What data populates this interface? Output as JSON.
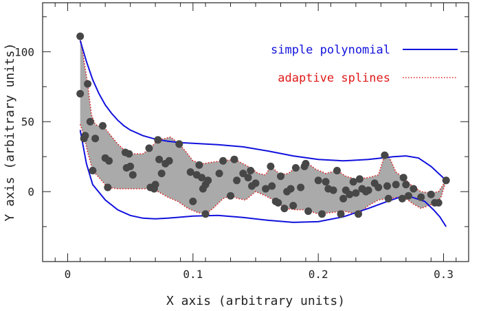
{
  "chart_data": {
    "type": "scatter",
    "xlabel": "X axis (arbitrary units)",
    "ylabel": "Y axis (arbitrary units)",
    "xlim": [
      -0.02,
      0.32
    ],
    "ylim": [
      -50,
      135
    ],
    "xticks": [
      0,
      0.1,
      0.2,
      0.3
    ],
    "xtick_labels": [
      "0",
      "0.1",
      "0.2",
      "0.3"
    ],
    "yticks": [
      0,
      50,
      100
    ],
    "ytick_labels": [
      "0",
      "50",
      "100"
    ],
    "grid": false,
    "legend": {
      "position": "top-right",
      "entries": [
        {
          "label": "simple polynomial",
          "color": "#1010dd",
          "style": "solid"
        },
        {
          "label": "adaptive splines",
          "color": "#e01818",
          "style": "dotted"
        }
      ]
    },
    "colors": {
      "points": "#474747",
      "band_fill": "#aaaaaa",
      "polynomial": "#1010dd",
      "splines": "#e01818"
    },
    "points": [
      [
        0.01,
        111
      ],
      [
        0.01,
        70
      ],
      [
        0.013,
        38
      ],
      [
        0.014,
        40
      ],
      [
        0.016,
        77
      ],
      [
        0.018,
        50
      ],
      [
        0.02,
        15
      ],
      [
        0.022,
        38
      ],
      [
        0.028,
        47
      ],
      [
        0.03,
        24
      ],
      [
        0.032,
        3
      ],
      [
        0.033,
        22
      ],
      [
        0.046,
        28
      ],
      [
        0.047,
        17
      ],
      [
        0.049,
        27
      ],
      [
        0.05,
        18
      ],
      [
        0.052,
        12
      ],
      [
        0.065,
        31
      ],
      [
        0.066,
        3
      ],
      [
        0.069,
        2
      ],
      [
        0.07,
        5
      ],
      [
        0.072,
        37
      ],
      [
        0.073,
        23
      ],
      [
        0.075,
        13
      ],
      [
        0.078,
        20
      ],
      [
        0.081,
        22
      ],
      [
        0.089,
        34
      ],
      [
        0.098,
        14
      ],
      [
        0.1,
        -7
      ],
      [
        0.103,
        12
      ],
      [
        0.105,
        19
      ],
      [
        0.107,
        10
      ],
      [
        0.108,
        2
      ],
      [
        0.11,
        -16
      ],
      [
        0.11,
        5
      ],
      [
        0.112,
        8
      ],
      [
        0.121,
        13
      ],
      [
        0.124,
        22
      ],
      [
        0.13,
        -3
      ],
      [
        0.133,
        23
      ],
      [
        0.135,
        8
      ],
      [
        0.14,
        13
      ],
      [
        0.144,
        10
      ],
      [
        0.146,
        15
      ],
      [
        0.147,
        4
      ],
      [
        0.15,
        6
      ],
      [
        0.158,
        2
      ],
      [
        0.162,
        18
      ],
      [
        0.163,
        4
      ],
      [
        0.166,
        -7
      ],
      [
        0.168,
        -8
      ],
      [
        0.17,
        11
      ],
      [
        0.173,
        -12
      ],
      [
        0.175,
        0
      ],
      [
        0.178,
        2
      ],
      [
        0.18,
        -10
      ],
      [
        0.182,
        17
      ],
      [
        0.186,
        3
      ],
      [
        0.189,
        18
      ],
      [
        0.19,
        20
      ],
      [
        0.192,
        -14
      ],
      [
        0.2,
        8
      ],
      [
        0.203,
        -16
      ],
      [
        0.206,
        7
      ],
      [
        0.208,
        2
      ],
      [
        0.212,
        1
      ],
      [
        0.215,
        15
      ],
      [
        0.218,
        -16
      ],
      [
        0.22,
        -5
      ],
      [
        0.222,
        1
      ],
      [
        0.225,
        -2
      ],
      [
        0.228,
        7
      ],
      [
        0.23,
        -1
      ],
      [
        0.232,
        -16
      ],
      [
        0.233,
        9
      ],
      [
        0.235,
        2
      ],
      [
        0.238,
        0
      ],
      [
        0.24,
        1
      ],
      [
        0.245,
        6
      ],
      [
        0.248,
        3
      ],
      [
        0.253,
        26
      ],
      [
        0.255,
        4
      ],
      [
        0.256,
        -5
      ],
      [
        0.262,
        5
      ],
      [
        0.267,
        -5
      ],
      [
        0.268,
        10
      ],
      [
        0.27,
        5
      ],
      [
        0.272,
        -3
      ],
      [
        0.276,
        2
      ],
      [
        0.282,
        -4
      ],
      [
        0.29,
        -2
      ],
      [
        0.293,
        -8
      ],
      [
        0.296,
        -8
      ],
      [
        0.302,
        8
      ]
    ],
    "polynomial_upper": [
      [
        0.01,
        108
      ],
      [
        0.015,
        93
      ],
      [
        0.02,
        80
      ],
      [
        0.025,
        70
      ],
      [
        0.03,
        62
      ],
      [
        0.035,
        56
      ],
      [
        0.04,
        51
      ],
      [
        0.045,
        47
      ],
      [
        0.05,
        44
      ],
      [
        0.06,
        40
      ],
      [
        0.07,
        37.5
      ],
      [
        0.08,
        36
      ],
      [
        0.09,
        35
      ],
      [
        0.1,
        34.5
      ],
      [
        0.11,
        34
      ],
      [
        0.12,
        33.5
      ],
      [
        0.14,
        32
      ],
      [
        0.16,
        29
      ],
      [
        0.18,
        25.5
      ],
      [
        0.2,
        23
      ],
      [
        0.22,
        22
      ],
      [
        0.24,
        23
      ],
      [
        0.26,
        25
      ],
      [
        0.27,
        25.5
      ],
      [
        0.28,
        24
      ],
      [
        0.29,
        18
      ],
      [
        0.302,
        8
      ]
    ],
    "polynomial_lower": [
      [
        0.01,
        44
      ],
      [
        0.015,
        20
      ],
      [
        0.02,
        5
      ],
      [
        0.03,
        -6
      ],
      [
        0.04,
        -13
      ],
      [
        0.05,
        -17
      ],
      [
        0.06,
        -19
      ],
      [
        0.07,
        -19.5
      ],
      [
        0.08,
        -19
      ],
      [
        0.1,
        -17.5
      ],
      [
        0.12,
        -17
      ],
      [
        0.14,
        -18.5
      ],
      [
        0.16,
        -20.5
      ],
      [
        0.18,
        -22
      ],
      [
        0.2,
        -21.5
      ],
      [
        0.22,
        -18
      ],
      [
        0.24,
        -12
      ],
      [
        0.255,
        -7
      ],
      [
        0.265,
        -4
      ],
      [
        0.275,
        -4
      ],
      [
        0.285,
        -7
      ],
      [
        0.292,
        -13
      ],
      [
        0.297,
        -18
      ],
      [
        0.302,
        -25
      ]
    ],
    "spline_upper": [
      [
        0.01,
        111
      ],
      [
        0.014,
        88
      ],
      [
        0.016,
        77
      ],
      [
        0.019,
        55
      ],
      [
        0.022,
        48
      ],
      [
        0.03,
        45
      ],
      [
        0.04,
        34
      ],
      [
        0.046,
        29
      ],
      [
        0.052,
        27
      ],
      [
        0.06,
        27
      ],
      [
        0.066,
        31
      ],
      [
        0.072,
        37
      ],
      [
        0.078,
        38
      ],
      [
        0.082,
        39
      ],
      [
        0.088,
        35
      ],
      [
        0.094,
        29
      ],
      [
        0.1,
        22
      ],
      [
        0.108,
        20
      ],
      [
        0.115,
        21
      ],
      [
        0.124,
        22
      ],
      [
        0.133,
        23
      ],
      [
        0.14,
        20
      ],
      [
        0.146,
        17
      ],
      [
        0.152,
        13
      ],
      [
        0.158,
        12
      ],
      [
        0.162,
        18
      ],
      [
        0.166,
        15
      ],
      [
        0.17,
        12
      ],
      [
        0.176,
        13
      ],
      [
        0.182,
        17
      ],
      [
        0.188,
        18
      ],
      [
        0.192,
        20
      ],
      [
        0.198,
        16
      ],
      [
        0.206,
        13
      ],
      [
        0.215,
        15
      ],
      [
        0.222,
        11
      ],
      [
        0.23,
        9
      ],
      [
        0.24,
        10
      ],
      [
        0.248,
        12
      ],
      [
        0.253,
        26
      ],
      [
        0.256,
        26
      ],
      [
        0.262,
        14
      ],
      [
        0.268,
        10
      ],
      [
        0.275,
        4
      ],
      [
        0.282,
        0
      ],
      [
        0.29,
        -1
      ],
      [
        0.296,
        0
      ],
      [
        0.302,
        8
      ]
    ],
    "spline_lower": [
      [
        0.01,
        48
      ],
      [
        0.013,
        40
      ],
      [
        0.016,
        28
      ],
      [
        0.02,
        15
      ],
      [
        0.025,
        10
      ],
      [
        0.032,
        3
      ],
      [
        0.04,
        2
      ],
      [
        0.05,
        2
      ],
      [
        0.06,
        2
      ],
      [
        0.066,
        2
      ],
      [
        0.072,
        0
      ],
      [
        0.08,
        -4
      ],
      [
        0.088,
        -7
      ],
      [
        0.096,
        -12
      ],
      [
        0.104,
        -15
      ],
      [
        0.11,
        -16
      ],
      [
        0.116,
        -12
      ],
      [
        0.124,
        -5
      ],
      [
        0.13,
        -3
      ],
      [
        0.136,
        -5
      ],
      [
        0.142,
        -6
      ],
      [
        0.15,
        0
      ],
      [
        0.158,
        -3
      ],
      [
        0.166,
        -7
      ],
      [
        0.174,
        -12
      ],
      [
        0.182,
        -13
      ],
      [
        0.19,
        -13
      ],
      [
        0.2,
        -16
      ],
      [
        0.21,
        -15
      ],
      [
        0.22,
        -14
      ],
      [
        0.232,
        -16
      ],
      [
        0.24,
        -10
      ],
      [
        0.248,
        -6
      ],
      [
        0.256,
        -5
      ],
      [
        0.264,
        -4
      ],
      [
        0.27,
        -5
      ],
      [
        0.276,
        -9
      ],
      [
        0.282,
        -12
      ],
      [
        0.288,
        -10
      ],
      [
        0.294,
        -8
      ],
      [
        0.298,
        -4
      ],
      [
        0.302,
        8
      ]
    ]
  }
}
